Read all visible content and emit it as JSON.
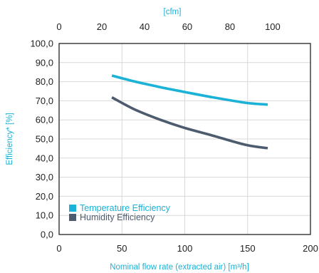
{
  "chart_data": {
    "type": "line",
    "title": "",
    "xlabel": "Nominal flow rate (extracted air) [m³/h]",
    "x2label": "[cfm]",
    "ylabel": "Efficiency* [%]",
    "xlim": [
      0,
      200
    ],
    "ylim": [
      0,
      100
    ],
    "x2lim": [
      0,
      117.7
    ],
    "x_ticks": [
      "0",
      "50",
      "100",
      "150",
      "200"
    ],
    "x2_ticks": [
      "0",
      "20",
      "40",
      "60",
      "80",
      "100"
    ],
    "y_ticks": [
      "0,0",
      "10,0",
      "20,0",
      "30,0",
      "40,0",
      "50,0",
      "60,0",
      "70,0",
      "80,0",
      "90,0",
      "100,0"
    ],
    "grid": true,
    "legend_position": "bottom-left",
    "series": [
      {
        "name": "Temperature Efficiency",
        "color": "#1ab2d6",
        "x": [
          42,
          60,
          80,
          100,
          120,
          148,
          166
        ],
        "y": [
          83.2,
          80.1,
          77.2,
          74.6,
          72.1,
          69.0,
          68.0
        ]
      },
      {
        "name": "Humidity Efficiency",
        "color": "#4d5b6e",
        "x": [
          42,
          60,
          80,
          100,
          120,
          148,
          166
        ],
        "y": [
          71.8,
          65.5,
          60.2,
          55.8,
          52.2,
          47.0,
          45.2
        ]
      }
    ],
    "colors": {
      "axis_label": "#1ab2d6",
      "tick": "#222222",
      "grid": "#d9d9d9",
      "frame": "#222222"
    }
  }
}
